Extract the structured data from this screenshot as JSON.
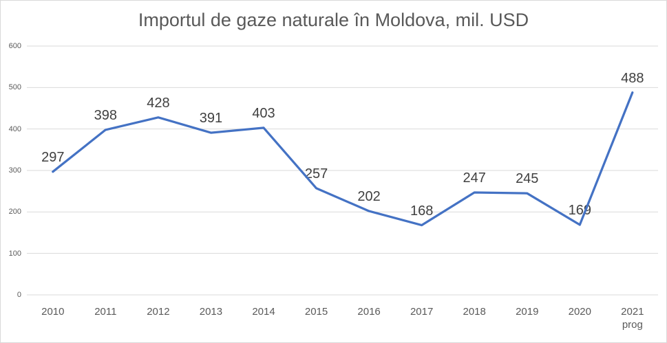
{
  "chart_data": {
    "type": "line",
    "title": "Importul de gaze naturale în Moldova, mil. USD",
    "categories": [
      "2010",
      "2011",
      "2012",
      "2013",
      "2014",
      "2015",
      "2016",
      "2017",
      "2018",
      "2019",
      "2020",
      "2021\nprog"
    ],
    "values": [
      297,
      398,
      428,
      391,
      403,
      257,
      202,
      168,
      247,
      245,
      169,
      488
    ],
    "data_labels": [
      "297",
      "398",
      "428",
      "391",
      "403",
      "257",
      "202",
      "168",
      "247",
      "245",
      "169",
      "488"
    ],
    "yticks": [
      0,
      100,
      200,
      300,
      400,
      500,
      600
    ],
    "ylim": [
      0,
      600
    ],
    "xlabel": "",
    "ylabel": "",
    "grid": true,
    "legend": false,
    "colors": {
      "line": "#4472C4",
      "gridline": "#D9D9D9",
      "title_text": "#595959",
      "axis_text": "#595959",
      "data_label_text": "#404040",
      "background": "#FFFFFF",
      "frame_border": "#D9D9D9"
    }
  }
}
